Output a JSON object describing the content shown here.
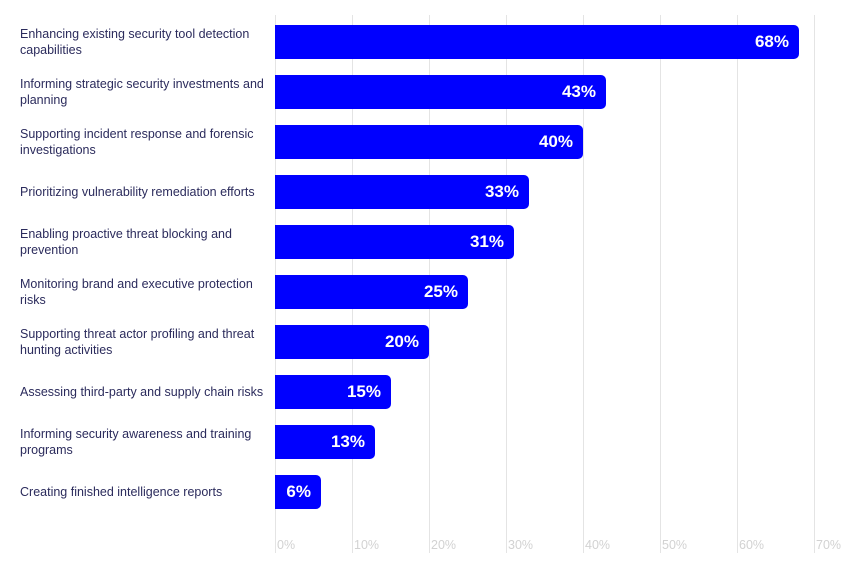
{
  "chart_data": {
    "type": "bar",
    "orientation": "horizontal",
    "title": "",
    "xlabel": "",
    "ylabel": "",
    "xlim": [
      0,
      70
    ],
    "grid": true,
    "bar_color": "#0000ff",
    "categories": [
      "Enhancing existing security tool detection capabilities",
      "Informing strategic security investments and planning",
      "Supporting incident response and forensic investigations",
      "Prioritizing vulnerability remediation efforts",
      "Enabling proactive threat blocking and prevention",
      "Monitoring brand and executive protection risks",
      "Supporting threat actor profiling and threat hunting activities",
      "Assessing third-party and supply chain risks",
      "Informing security awareness and training programs",
      "Creating finished intelligence reports"
    ],
    "values": [
      68,
      43,
      40,
      33,
      31,
      25,
      20,
      15,
      13,
      6
    ],
    "data_labels": [
      "68%",
      "43%",
      "40%",
      "33%",
      "31%",
      "25%",
      "20%",
      "15%",
      "13%",
      "6%"
    ],
    "ticks": [
      0,
      10,
      20,
      30,
      40,
      50,
      60,
      70
    ],
    "tick_labels": [
      "0%",
      "10%",
      "20%",
      "30%",
      "40%",
      "50%",
      "60%",
      "70%"
    ]
  }
}
